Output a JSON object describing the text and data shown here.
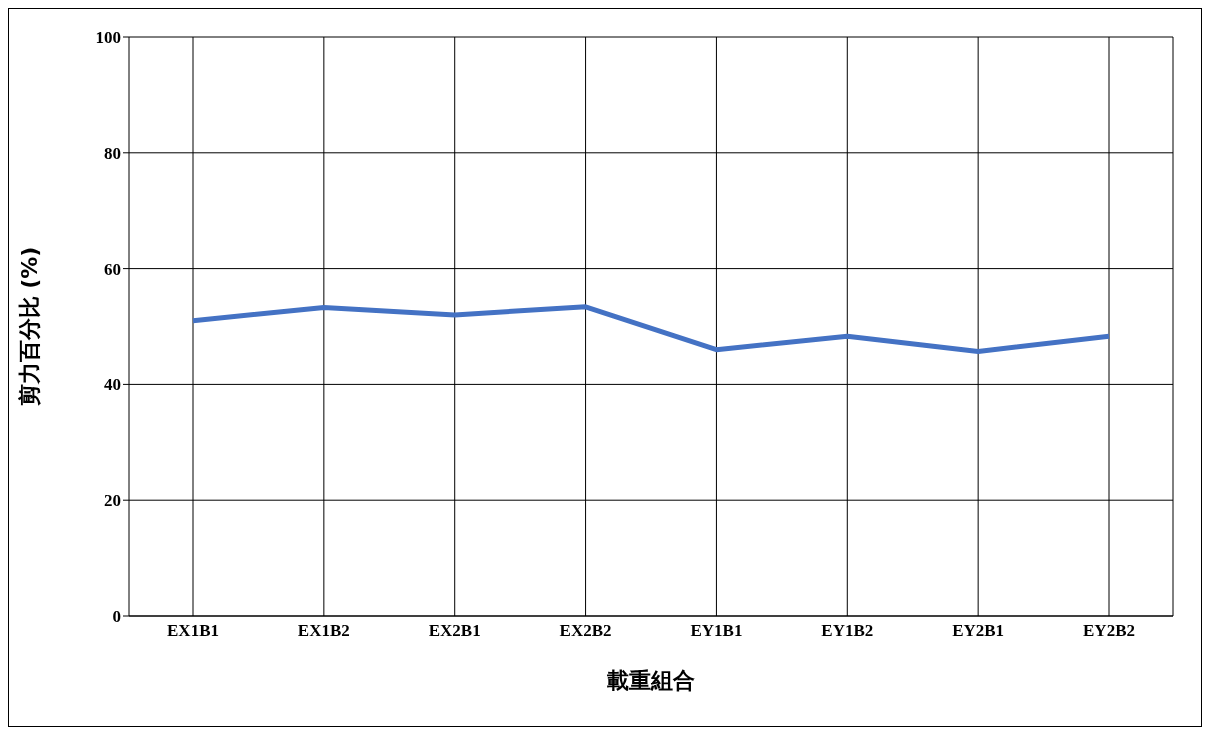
{
  "chart_data": {
    "type": "line",
    "xlabel": "載重組合",
    "ylabel": "剪力百分比 (%)",
    "categories": [
      "EX1B1",
      "EX1B2",
      "EX2B1",
      "EX2B2",
      "EY1B1",
      "EY1B2",
      "EY2B1",
      "EY2B2"
    ],
    "series": [
      {
        "color": "#4472c4",
        "values": [
          51.0,
          53.3,
          52.0,
          53.4,
          46.0,
          48.3,
          45.7,
          48.3
        ]
      }
    ],
    "ylim": [
      0,
      100
    ],
    "yticks": [
      0,
      20,
      40,
      60,
      80,
      100
    ],
    "grid": true,
    "legend": false,
    "marker": "none",
    "line_style": "solid"
  }
}
